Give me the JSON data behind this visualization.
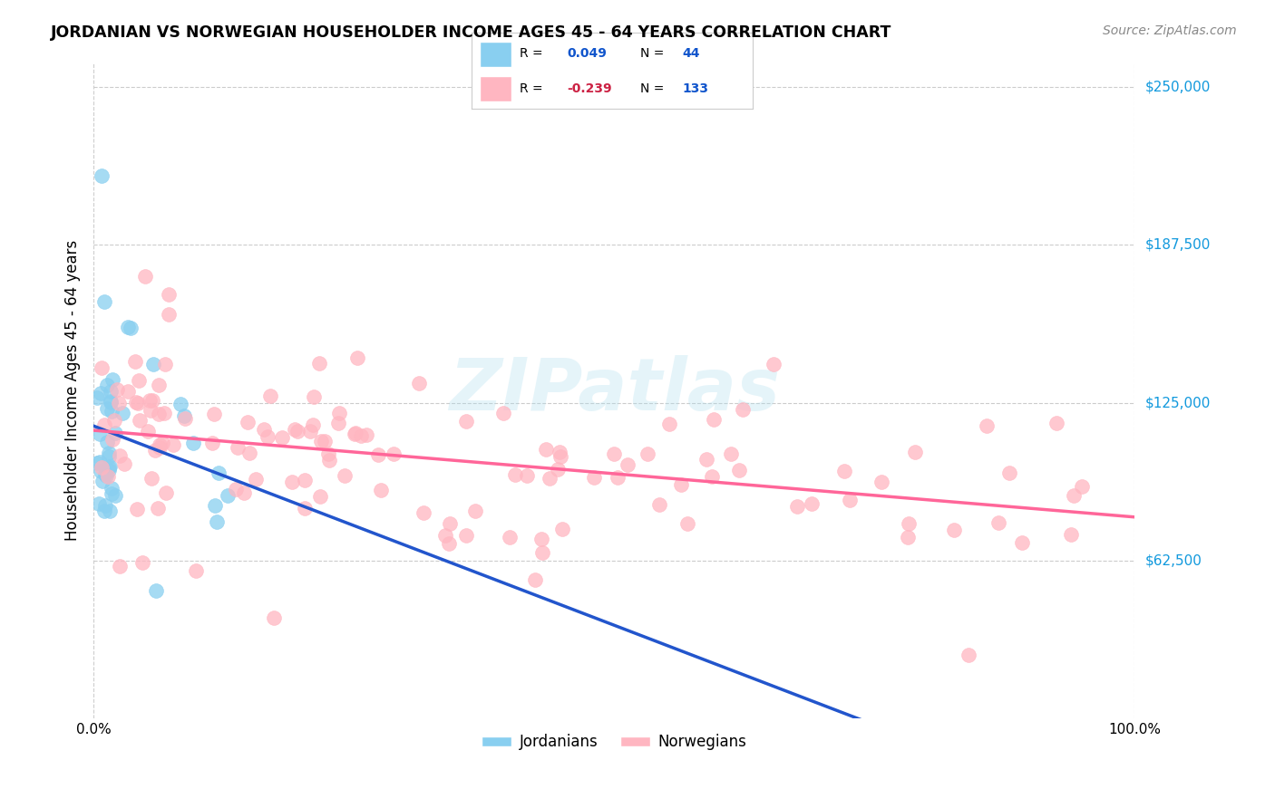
{
  "title": "JORDANIAN VS NORWEGIAN HOUSEHOLDER INCOME AGES 45 - 64 YEARS CORRELATION CHART",
  "source": "Source: ZipAtlas.com",
  "ylabel": "Householder Income Ages 45 - 64 years",
  "xlim": [
    0,
    1.0
  ],
  "ylim": [
    0,
    260000
  ],
  "xticks": [
    0.0,
    0.1,
    0.2,
    0.3,
    0.4,
    0.5,
    0.6,
    0.7,
    0.8,
    0.9,
    1.0
  ],
  "xticklabels": [
    "0.0%",
    "",
    "",
    "",
    "",
    "",
    "",
    "",
    "",
    "",
    "100.0%"
  ],
  "ytick_values": [
    62500,
    125000,
    187500,
    250000
  ],
  "ytick_labels": [
    "$62,500",
    "$125,000",
    "$187,500",
    "$250,000"
  ],
  "blue_R": 0.049,
  "blue_N": 44,
  "pink_R": -0.239,
  "pink_N": 133,
  "blue_color": "#89CFF0",
  "pink_color": "#FFB6C1",
  "blue_line_color": "#2255CC",
  "pink_line_color": "#FF6699",
  "blue_dashed_color": "#99CCEE",
  "watermark": "ZIPatlas",
  "legend_label_blue": "Jordanians",
  "legend_label_pink": "Norwegians"
}
